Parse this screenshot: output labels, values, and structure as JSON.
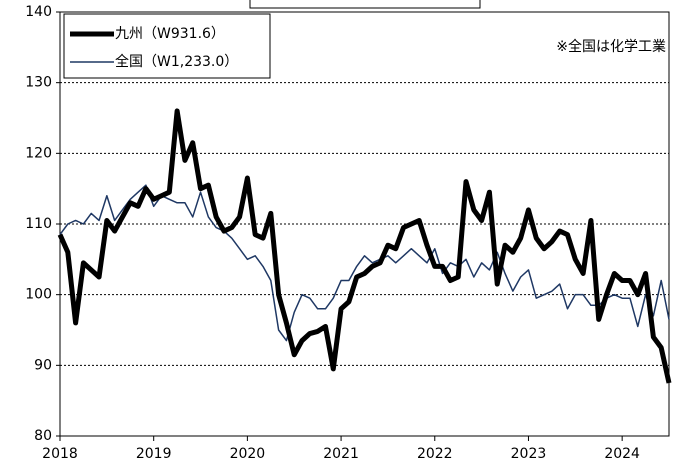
{
  "chart_data": {
    "type": "line",
    "categories": [
      "2018",
      null,
      null,
      null,
      null,
      null,
      null,
      null,
      null,
      null,
      null,
      null,
      "2019",
      null,
      null,
      null,
      null,
      null,
      null,
      null,
      null,
      null,
      null,
      null,
      "2020",
      null,
      null,
      null,
      null,
      null,
      null,
      null,
      null,
      null,
      null,
      null,
      "2021",
      null,
      null,
      null,
      null,
      null,
      null,
      null,
      null,
      null,
      null,
      null,
      "2022",
      null,
      null,
      null,
      null,
      null,
      null,
      null,
      null,
      null,
      null,
      null,
      "2023",
      null,
      null,
      null,
      null,
      null,
      null,
      null,
      null,
      null,
      null,
      null,
      "2024",
      null,
      null,
      null,
      null,
      null,
      null
    ],
    "series": [
      {
        "name": "九州（W931.6）",
        "color": "#000000",
        "width": 5,
        "values": [
          108.5,
          106,
          96,
          104.5,
          103.5,
          102.5,
          110.5,
          109,
          111,
          113,
          112.5,
          115,
          113.5,
          114,
          114.5,
          126,
          119,
          121.5,
          115,
          115.5,
          111,
          109,
          109.5,
          111,
          116.5,
          108.5,
          108,
          111.5,
          100,
          96,
          91.5,
          93.5,
          94.5,
          94.8,
          95.5,
          89.5,
          98,
          99,
          102.5,
          103,
          104,
          104.5,
          107,
          106.5,
          109.5,
          110,
          110.5,
          107,
          104,
          104,
          102,
          102.5,
          116,
          112,
          110.5,
          114.5,
          101.5,
          107,
          106,
          108,
          112,
          108,
          106.5,
          107.5,
          109,
          108.5,
          105,
          103,
          110.5,
          96.5,
          100,
          103,
          102,
          102,
          100,
          103,
          94,
          92.5,
          87.5
        ]
      },
      {
        "name": "全国（W1,233.0）",
        "color": "#1f3864",
        "width": 1.5,
        "values": [
          108.5,
          110,
          110.5,
          110,
          111.5,
          110.5,
          114,
          110.5,
          112,
          113.5,
          114.5,
          115.5,
          112.5,
          114,
          113.5,
          113,
          113,
          111,
          114.5,
          111,
          109.5,
          109,
          108,
          106.5,
          105,
          105.5,
          104,
          102,
          95,
          93.5,
          97.5,
          100,
          99.5,
          98,
          98,
          99.5,
          102,
          102,
          104,
          105.5,
          104.5,
          105,
          105.5,
          104.5,
          105.5,
          106.5,
          105.5,
          104.5,
          106.5,
          103,
          104.5,
          104,
          105,
          102.5,
          104.5,
          103.5,
          106,
          103,
          100.5,
          102.5,
          103.5,
          99.5,
          100,
          100.5,
          101.5,
          98,
          100,
          100,
          98.5,
          98.5,
          99.5,
          100,
          99.5,
          99.5,
          95.5,
          100,
          97,
          102,
          96.5
        ]
      }
    ],
    "annotation": "※全国は化学工業",
    "ylim": [
      80,
      140
    ],
    "yticks": [
      80,
      90,
      100,
      110,
      120,
      130,
      140
    ],
    "grid": true
  }
}
